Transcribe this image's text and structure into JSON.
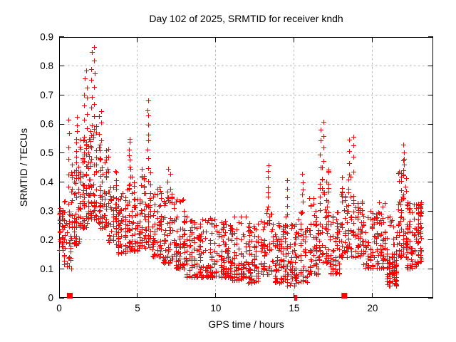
{
  "title": "Day 102 of 2025, SRMTID for receiver kndh",
  "colors": {
    "series": "#ff0000",
    "grid": "#b4b4b4",
    "axis": "#000000",
    "background": "#ffffff",
    "text": "#000000"
  },
  "chart_data": {
    "type": "scatter",
    "title": "Day 102 of 2025, SRMTID for receiver kndh",
    "xlabel": "GPS time / hours",
    "ylabel": "SRMTID / TECUs",
    "xlim": [
      0,
      23.87
    ],
    "ylim": [
      0,
      0.9
    ],
    "x_ticks": {
      "values": [
        0,
        5,
        10,
        15,
        20
      ],
      "labels": [
        "0",
        "5",
        "10",
        "15",
        "20"
      ]
    },
    "y_ticks": {
      "values": [
        0,
        0.1,
        0.2,
        0.3,
        0.4,
        0.5,
        0.6,
        0.7,
        0.8,
        0.9
      ],
      "labels": [
        "0",
        "0.1",
        "0.2",
        "0.3",
        "0.4",
        "0.5",
        "0.6",
        "0.7",
        "0.8",
        "0.9"
      ]
    },
    "grid": true,
    "legend": "none",
    "marker": "plus",
    "marker_size_px": 7,
    "series_color": "#ff0000",
    "x_data_range": [
      0,
      23.15
    ],
    "peak_point": {
      "x": 2.2,
      "y": 0.87
    },
    "seed": 7,
    "point_distribution": {
      "segments_format": "[t_start_hours, t_end_hours, n_points, y_min_TECUs, y_max_TECUs, skew_power]",
      "segments": [
        [
          0.0,
          0.3,
          30,
          0.16,
          0.31,
          1.0
        ],
        [
          0.3,
          0.8,
          40,
          0.1,
          0.34,
          1.4
        ],
        [
          0.8,
          1.3,
          55,
          0.18,
          0.46,
          1.4
        ],
        [
          1.3,
          1.85,
          65,
          0.24,
          0.56,
          1.5
        ],
        [
          1.85,
          2.45,
          75,
          0.27,
          0.6,
          1.5
        ],
        [
          2.45,
          3.1,
          65,
          0.24,
          0.52,
          1.5
        ],
        [
          3.1,
          3.7,
          55,
          0.18,
          0.44,
          1.4
        ],
        [
          3.7,
          4.3,
          55,
          0.15,
          0.36,
          1.3
        ],
        [
          4.3,
          5.1,
          75,
          0.16,
          0.42,
          1.5
        ],
        [
          5.1,
          5.9,
          75,
          0.17,
          0.45,
          1.5
        ],
        [
          5.9,
          6.6,
          60,
          0.14,
          0.38,
          1.4
        ],
        [
          6.6,
          7.4,
          65,
          0.12,
          0.36,
          1.5
        ],
        [
          7.4,
          8.1,
          70,
          0.1,
          0.34,
          1.4
        ],
        [
          8.1,
          9.0,
          75,
          0.07,
          0.28,
          1.6
        ],
        [
          9.0,
          10.0,
          85,
          0.07,
          0.28,
          1.9
        ],
        [
          10.0,
          11.0,
          85,
          0.07,
          0.28,
          1.9
        ],
        [
          11.0,
          12.0,
          85,
          0.06,
          0.28,
          1.9
        ],
        [
          12.0,
          12.8,
          70,
          0.05,
          0.26,
          1.7
        ],
        [
          12.8,
          13.6,
          60,
          0.08,
          0.32,
          1.6
        ],
        [
          13.6,
          14.4,
          70,
          0.05,
          0.26,
          1.5
        ],
        [
          14.4,
          15.1,
          60,
          0.04,
          0.28,
          1.5
        ],
        [
          15.1,
          15.9,
          60,
          0.05,
          0.3,
          1.5
        ],
        [
          15.9,
          16.6,
          60,
          0.08,
          0.36,
          1.6
        ],
        [
          16.6,
          17.3,
          70,
          0.12,
          0.45,
          1.5
        ],
        [
          17.3,
          18.0,
          60,
          0.08,
          0.3,
          1.4
        ],
        [
          18.0,
          18.7,
          60,
          0.14,
          0.42,
          1.5
        ],
        [
          18.7,
          19.4,
          55,
          0.14,
          0.35,
          1.4
        ],
        [
          19.4,
          20.2,
          60,
          0.1,
          0.3,
          1.3
        ],
        [
          20.2,
          20.9,
          60,
          0.1,
          0.33,
          1.4
        ],
        [
          20.9,
          21.6,
          85,
          0.04,
          0.16,
          1.2
        ],
        [
          20.9,
          21.6,
          15,
          0.16,
          0.28,
          1.0
        ],
        [
          21.6,
          22.2,
          60,
          0.14,
          0.44,
          1.5
        ],
        [
          22.2,
          22.85,
          70,
          0.1,
          0.33,
          1.5
        ],
        [
          22.85,
          23.15,
          55,
          0.12,
          0.33,
          1.2
        ]
      ],
      "spike_columns_format": "[t_start_hours, t_end_hours, n_points, y_min_TECUs, y_max_TECUs]",
      "spike_columns": [
        [
          0.5,
          0.75,
          6,
          0.38,
          0.62
        ],
        [
          1.0,
          1.25,
          8,
          0.46,
          0.62
        ],
        [
          1.55,
          1.85,
          10,
          0.56,
          0.78
        ],
        [
          2.0,
          2.35,
          12,
          0.6,
          0.87
        ],
        [
          2.5,
          2.8,
          6,
          0.52,
          0.65
        ],
        [
          3.1,
          3.2,
          3,
          0.45,
          0.52
        ],
        [
          4.4,
          4.65,
          8,
          0.42,
          0.55
        ],
        [
          5.6,
          5.8,
          9,
          0.45,
          0.68
        ],
        [
          6.9,
          7.2,
          5,
          0.36,
          0.44
        ],
        [
          13.25,
          13.5,
          7,
          0.32,
          0.455
        ],
        [
          14.5,
          14.7,
          5,
          0.28,
          0.4
        ],
        [
          15.45,
          15.65,
          6,
          0.3,
          0.43
        ],
        [
          16.6,
          17.0,
          8,
          0.45,
          0.6
        ],
        [
          18.4,
          18.95,
          8,
          0.42,
          0.56
        ],
        [
          21.9,
          22.1,
          7,
          0.42,
          0.52
        ]
      ],
      "zero_markers": {
        "square_hours": [
          0.68,
          18.2
        ],
        "thin_tick_hours": [
          15.05,
          15.15
        ]
      }
    }
  }
}
